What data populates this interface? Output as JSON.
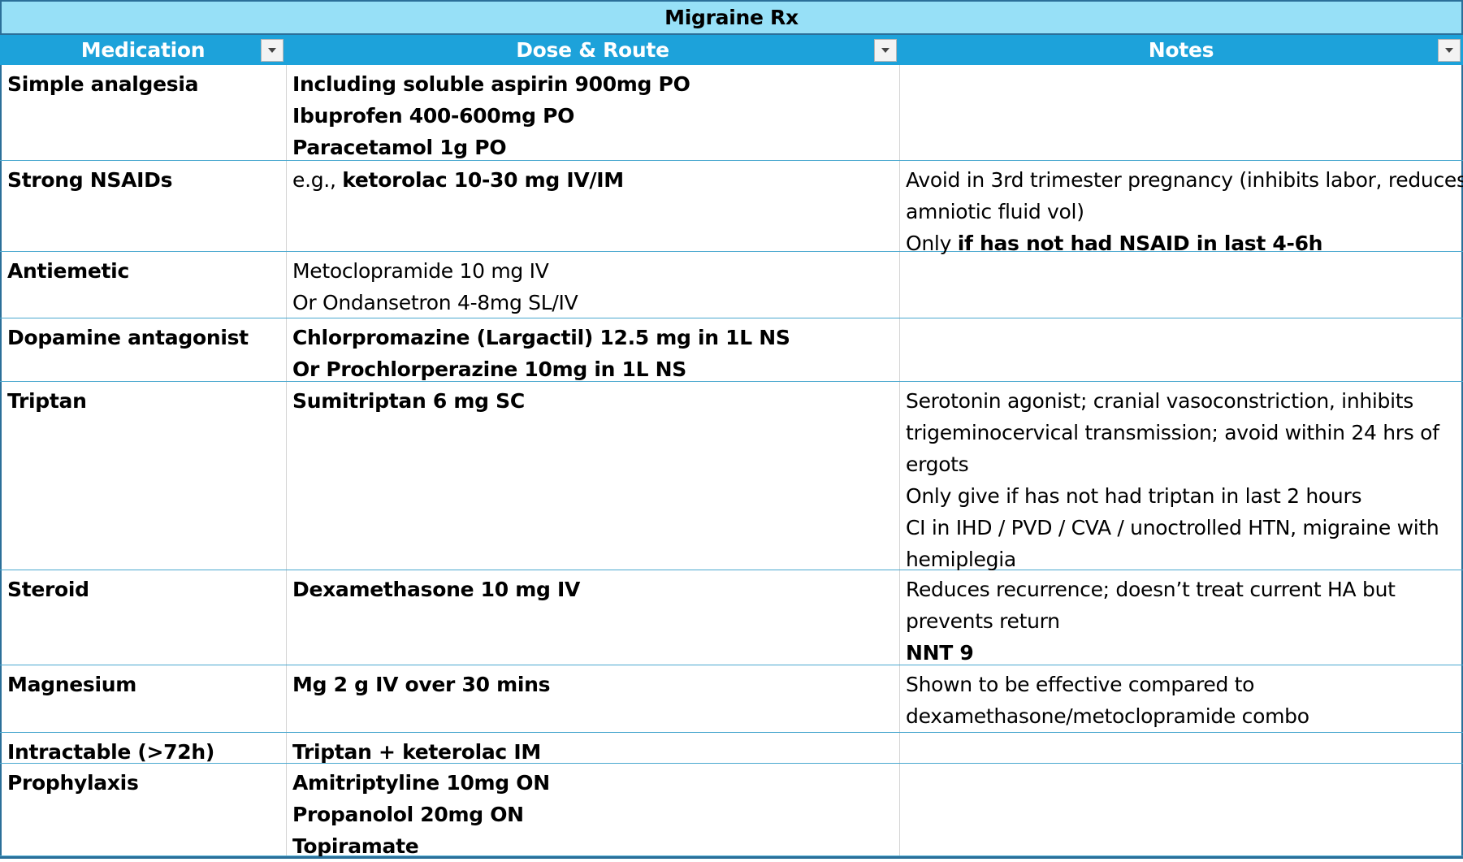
{
  "title": "Migraine Rx",
  "columns": [
    {
      "label": "Medication"
    },
    {
      "label": "Dose & Route"
    },
    {
      "label": "Notes"
    }
  ],
  "rows": [
    {
      "medication": "Simple analgesia",
      "dose": [
        [
          {
            "t": "Including soluble aspirin 900mg PO",
            "b": true
          }
        ],
        [
          {
            "t": "Ibuprofen 400-600mg PO",
            "b": true
          }
        ],
        [
          {
            "t": "Paracetamol 1g PO",
            "b": true
          }
        ]
      ],
      "notes": []
    },
    {
      "medication": "Strong NSAIDs",
      "dose": [
        [
          {
            "t": "e.g., ",
            "b": false
          },
          {
            "t": "ketorolac 10-30 mg IV/IM",
            "b": true
          }
        ]
      ],
      "notes": [
        [
          {
            "t": "Avoid in 3rd trimester pregnancy (inhibits labor, reduces",
            "b": false
          }
        ],
        [
          {
            "t": "amniotic fluid vol)",
            "b": false
          }
        ],
        [
          {
            "t": "Only ",
            "b": false
          },
          {
            "t": "if has not had NSAID in last 4-6h",
            "b": true
          }
        ]
      ]
    },
    {
      "medication": "Antiemetic",
      "dose": [
        [
          {
            "t": "Metoclopramide 10 mg IV",
            "b": false
          }
        ],
        [
          {
            "t": "Or Ondansetron 4-8mg SL/IV",
            "b": false
          }
        ]
      ],
      "notes": []
    },
    {
      "medication": "Dopamine antagonist",
      "dose": [
        [
          {
            "t": "Chlorpromazine (Largactil) 12.5 mg in 1L NS",
            "b": true
          }
        ],
        [
          {
            "t": "Or Prochlorperazine 10mg in 1L NS",
            "b": true
          }
        ]
      ],
      "notes": []
    },
    {
      "medication": "Triptan",
      "dose": [
        [
          {
            "t": "Sumitriptan 6 mg SC",
            "b": true
          }
        ]
      ],
      "notes": [
        [
          {
            "t": "Serotonin agonist; cranial vasoconstriction, inhibits",
            "b": false
          }
        ],
        [
          {
            "t": "trigeminocervical transmission; avoid within 24 hrs of",
            "b": false
          }
        ],
        [
          {
            "t": "ergots",
            "b": false
          }
        ],
        [
          {
            "t": "Only give if has not had triptan in last 2 hours",
            "b": false
          }
        ],
        [
          {
            "t": "CI in IHD / PVD / CVA / unoctrolled HTN, migraine with",
            "b": false
          }
        ],
        [
          {
            "t": "hemiplegia",
            "b": false
          }
        ]
      ]
    },
    {
      "medication": "Steroid",
      "dose": [
        [
          {
            "t": "Dexamethasone 10 mg IV",
            "b": true
          }
        ]
      ],
      "notes": [
        [
          {
            "t": "Reduces recurrence; doesn’t treat current HA but",
            "b": false
          }
        ],
        [
          {
            "t": "prevents return",
            "b": false
          }
        ],
        [
          {
            "t": "NNT 9",
            "b": true
          }
        ]
      ]
    },
    {
      "medication": "Magnesium",
      "dose": [
        [
          {
            "t": "Mg 2 g IV over 30 mins",
            "b": true
          }
        ]
      ],
      "notes": [
        [
          {
            "t": "Shown to be effective compared to",
            "b": false
          }
        ],
        [
          {
            "t": "dexamethasone/metoclopramide combo",
            "b": false
          }
        ]
      ]
    },
    {
      "medication": "Intractable (>72h)",
      "dose": [
        [
          {
            "t": "Triptan + keterolac IM",
            "b": true
          }
        ]
      ],
      "notes": []
    },
    {
      "medication": "Prophylaxis",
      "dose": [
        [
          {
            "t": "Amitriptyline 10mg ON",
            "b": true
          }
        ],
        [
          {
            "t": "Propanolol 20mg ON",
            "b": true
          }
        ],
        [
          {
            "t": "Topiramate",
            "b": true
          }
        ]
      ],
      "notes": []
    }
  ]
}
